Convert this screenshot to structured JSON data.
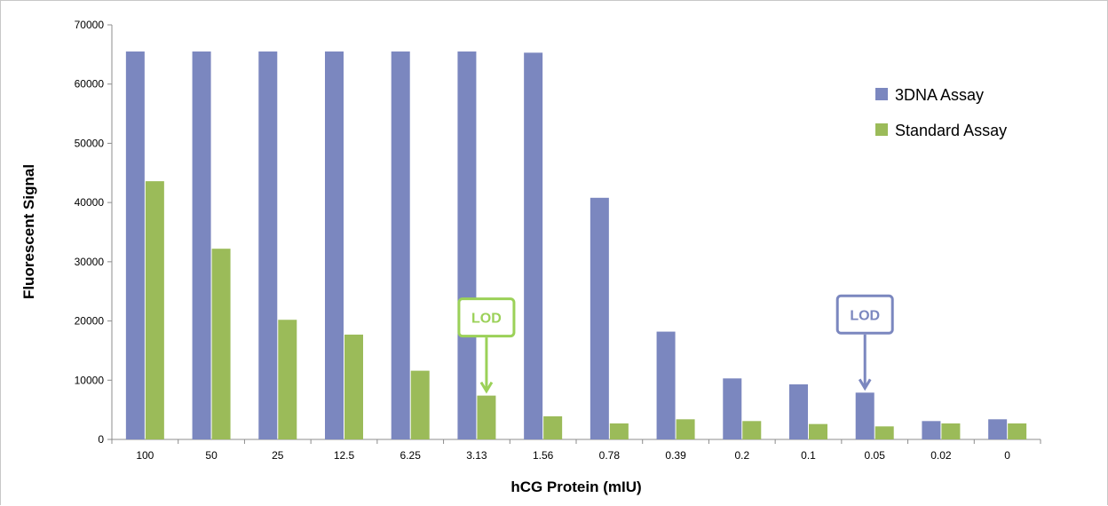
{
  "chart_data": {
    "type": "bar",
    "xlabel": "hCG Protein (mIU)",
    "ylabel": "Fluorescent Signal",
    "ylim": [
      0,
      70000
    ],
    "yticks": [
      0,
      10000,
      20000,
      30000,
      40000,
      50000,
      60000,
      70000
    ],
    "categories": [
      "100",
      "50",
      "25",
      "12.5",
      "6.25",
      "3.13",
      "1.56",
      "0.78",
      "0.39",
      "0.2",
      "0.1",
      "0.05",
      "0.02",
      "0"
    ],
    "series": [
      {
        "name": "3DNA Assay",
        "color": "#7b87bf",
        "values": [
          65500,
          65500,
          65500,
          65500,
          65500,
          65500,
          65300,
          40800,
          18200,
          10300,
          9300,
          7900,
          3100,
          3400
        ]
      },
      {
        "name": "Standard Assay",
        "color": "#9bbb59",
        "values": [
          43600,
          32200,
          20200,
          17700,
          11600,
          7400,
          3900,
          2700,
          3400,
          3100,
          2600,
          2200,
          2700,
          2700
        ]
      }
    ],
    "legend_position": "top-right",
    "grid": false,
    "annotations": [
      {
        "text": "LOD",
        "category": "3.13",
        "series": "Standard Assay",
        "color": "#9bd158"
      },
      {
        "text": "LOD",
        "category": "0.05",
        "series": "3DNA Assay",
        "color": "#7b87bf"
      }
    ]
  }
}
